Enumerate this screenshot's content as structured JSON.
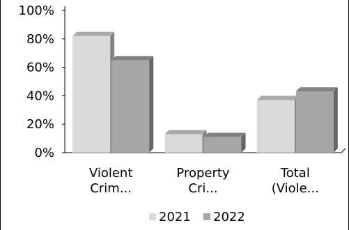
{
  "chart_data": {
    "type": "bar",
    "title": "",
    "xlabel": "",
    "ylabel": "",
    "categories": [
      "Violent\nCrim...",
      "Property\nCri...",
      "Total\n(Viole..."
    ],
    "series": [
      {
        "name": "2021",
        "values": [
          82,
          13,
          37
        ],
        "color": "#d9d9d9"
      },
      {
        "name": "2022",
        "values": [
          65,
          11,
          43
        ],
        "color": "#a6a6a6"
      }
    ],
    "ylim": [
      0,
      100
    ],
    "yticks": [
      0,
      20,
      40,
      60,
      80,
      100
    ],
    "ytick_suffix": "%",
    "grid": false,
    "legend_position": "bottom"
  }
}
